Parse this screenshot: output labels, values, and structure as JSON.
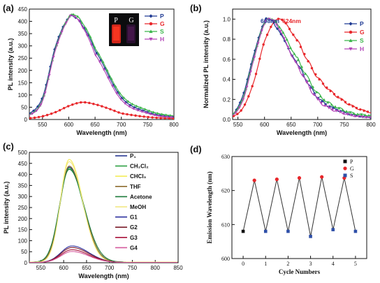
{
  "chart_data": [
    {
      "panel": "(a)",
      "type": "line",
      "xlabel": "Wavelength (nm)",
      "ylabel": "PL intensity (a.u.)",
      "xlim": [
        525,
        800
      ],
      "ylim": [
        0,
        450
      ],
      "xticks": [
        550,
        600,
        650,
        700,
        750,
        800
      ],
      "yticks": [
        0,
        50,
        100,
        150,
        200,
        250,
        300,
        350,
        400,
        450
      ],
      "legend_position": "top-right",
      "inset_labels": [
        "P",
        "G"
      ],
      "series": [
        {
          "name": "P",
          "color": "#1f3a93",
          "marker": "diamond",
          "x": [
            525,
            550,
            575,
            600,
            610,
            625,
            650,
            700,
            750,
            800
          ],
          "y": [
            25,
            90,
            300,
            415,
            418,
            385,
            280,
            90,
            30,
            10
          ]
        },
        {
          "name": "G",
          "color": "#e8262a",
          "marker": "circle",
          "x": [
            525,
            550,
            575,
            600,
            625,
            650,
            675,
            700,
            750,
            800
          ],
          "y": [
            5,
            13,
            30,
            55,
            70,
            62,
            45,
            25,
            10,
            4
          ]
        },
        {
          "name": "S",
          "color": "#3ab54a",
          "marker": "triangle",
          "x": [
            525,
            550,
            575,
            600,
            612,
            625,
            650,
            700,
            750,
            800
          ],
          "y": [
            20,
            80,
            290,
            415,
            425,
            395,
            290,
            100,
            38,
            15
          ]
        },
        {
          "name": "H",
          "color": "#b347b8",
          "marker": "triangle-down",
          "x": [
            525,
            550,
            575,
            600,
            610,
            625,
            650,
            700,
            750,
            800
          ],
          "y": [
            18,
            75,
            285,
            410,
            420,
            380,
            265,
            80,
            25,
            8
          ]
        }
      ]
    },
    {
      "panel": "(b)",
      "type": "line",
      "xlabel": "Wavelength (nm)",
      "ylabel": "Normalized PL intensity (a.u.)",
      "xlim": [
        540,
        800
      ],
      "ylim": [
        0,
        1.1
      ],
      "xticks": [
        550,
        600,
        650,
        700,
        750,
        800
      ],
      "yticks": [
        0.0,
        0.2,
        0.4,
        0.6,
        0.8,
        1.0
      ],
      "annotations": [
        "608nm",
        "624nm"
      ],
      "legend_position": "top-right",
      "series": [
        {
          "name": "P",
          "color": "#1f3a93",
          "marker": "diamond",
          "x": [
            540,
            560,
            580,
            600,
            608,
            620,
            650,
            700,
            750,
            800
          ],
          "y": [
            0.05,
            0.25,
            0.65,
            0.97,
            1.0,
            0.93,
            0.65,
            0.22,
            0.07,
            0.02
          ]
        },
        {
          "name": "G",
          "color": "#e8262a",
          "marker": "circle",
          "x": [
            540,
            560,
            580,
            600,
            624,
            650,
            700,
            750,
            800
          ],
          "y": [
            0.03,
            0.12,
            0.38,
            0.78,
            1.0,
            0.87,
            0.42,
            0.18,
            0.07
          ]
        },
        {
          "name": "S",
          "color": "#3ab54a",
          "marker": "triangle",
          "x": [
            540,
            560,
            580,
            600,
            612,
            625,
            650,
            700,
            750,
            800
          ],
          "y": [
            0.05,
            0.22,
            0.62,
            0.96,
            1.0,
            0.94,
            0.7,
            0.26,
            0.09,
            0.04
          ]
        },
        {
          "name": "H",
          "color": "#b347b8",
          "marker": "triangle-down",
          "x": [
            540,
            560,
            580,
            600,
            610,
            625,
            650,
            700,
            750,
            800
          ],
          "y": [
            0.04,
            0.2,
            0.6,
            0.95,
            1.0,
            0.92,
            0.64,
            0.2,
            0.06,
            0.02
          ]
        }
      ]
    },
    {
      "panel": "(c)",
      "type": "line",
      "xlabel": "Wavelength (nm)",
      "ylabel": "PL intensity (a.u.)",
      "xlim": [
        525,
        850
      ],
      "ylim": [
        0,
        500
      ],
      "xticks": [
        550,
        600,
        650,
        700,
        750,
        800,
        850
      ],
      "yticks": [
        0,
        50,
        100,
        150,
        200,
        250,
        300,
        350,
        400,
        450,
        500
      ],
      "legend_position": "top-right",
      "series": [
        {
          "name": "P₁",
          "color": "#1a2a8c",
          "peak": 430,
          "width": 38
        },
        {
          "name": "CH₂Cl₂",
          "color": "#2ea043",
          "peak": 425,
          "width": 38
        },
        {
          "name": "CHCl₃",
          "color": "#f4ec5a",
          "peak": 465,
          "width": 36
        },
        {
          "name": "THF",
          "color": "#8c6b2e",
          "peak": 435,
          "width": 38
        },
        {
          "name": "Acetone",
          "color": "#1b7a3a",
          "peak": 420,
          "width": 40
        },
        {
          "name": "MeOH",
          "color": "#f2e67a",
          "peak": 455,
          "width": 36
        },
        {
          "name": "G1",
          "color": "#2b2f9e",
          "peak": 75,
          "width": 45
        },
        {
          "name": "G2",
          "color": "#7a1c2a",
          "peak": 68,
          "width": 45
        },
        {
          "name": "G3",
          "color": "#a8123a",
          "peak": 58,
          "width": 45
        },
        {
          "name": "G4",
          "color": "#d45a9c",
          "peak": 50,
          "width": 45
        }
      ]
    },
    {
      "panel": "(d)",
      "type": "line",
      "xlabel": "Cycle Numbers",
      "ylabel": "Emission Wavelength (nm)",
      "xlim": [
        -0.5,
        5.5
      ],
      "ylim": [
        600,
        630
      ],
      "xticks": [
        0,
        1,
        2,
        3,
        4,
        5
      ],
      "yticks": [
        600,
        610,
        620,
        630
      ],
      "legend_position": "top-right",
      "legend": [
        {
          "name": "P",
          "color": "#111111"
        },
        {
          "name": "G",
          "color": "#e8262a"
        },
        {
          "name": "S",
          "color": "#2e4fa8"
        }
      ],
      "points": [
        {
          "x": 0,
          "y": 608,
          "kind": "P"
        },
        {
          "x": 0.5,
          "y": 623,
          "kind": "G"
        },
        {
          "x": 1,
          "y": 608,
          "kind": "S"
        },
        {
          "x": 1.5,
          "y": 623.3,
          "kind": "G"
        },
        {
          "x": 2,
          "y": 608,
          "kind": "S"
        },
        {
          "x": 2.5,
          "y": 623.7,
          "kind": "G"
        },
        {
          "x": 3,
          "y": 606.5,
          "kind": "S"
        },
        {
          "x": 3.5,
          "y": 624,
          "kind": "G"
        },
        {
          "x": 4,
          "y": 608.5,
          "kind": "S"
        },
        {
          "x": 4.5,
          "y": 623.7,
          "kind": "G"
        },
        {
          "x": 5,
          "y": 608,
          "kind": "S"
        }
      ]
    }
  ]
}
